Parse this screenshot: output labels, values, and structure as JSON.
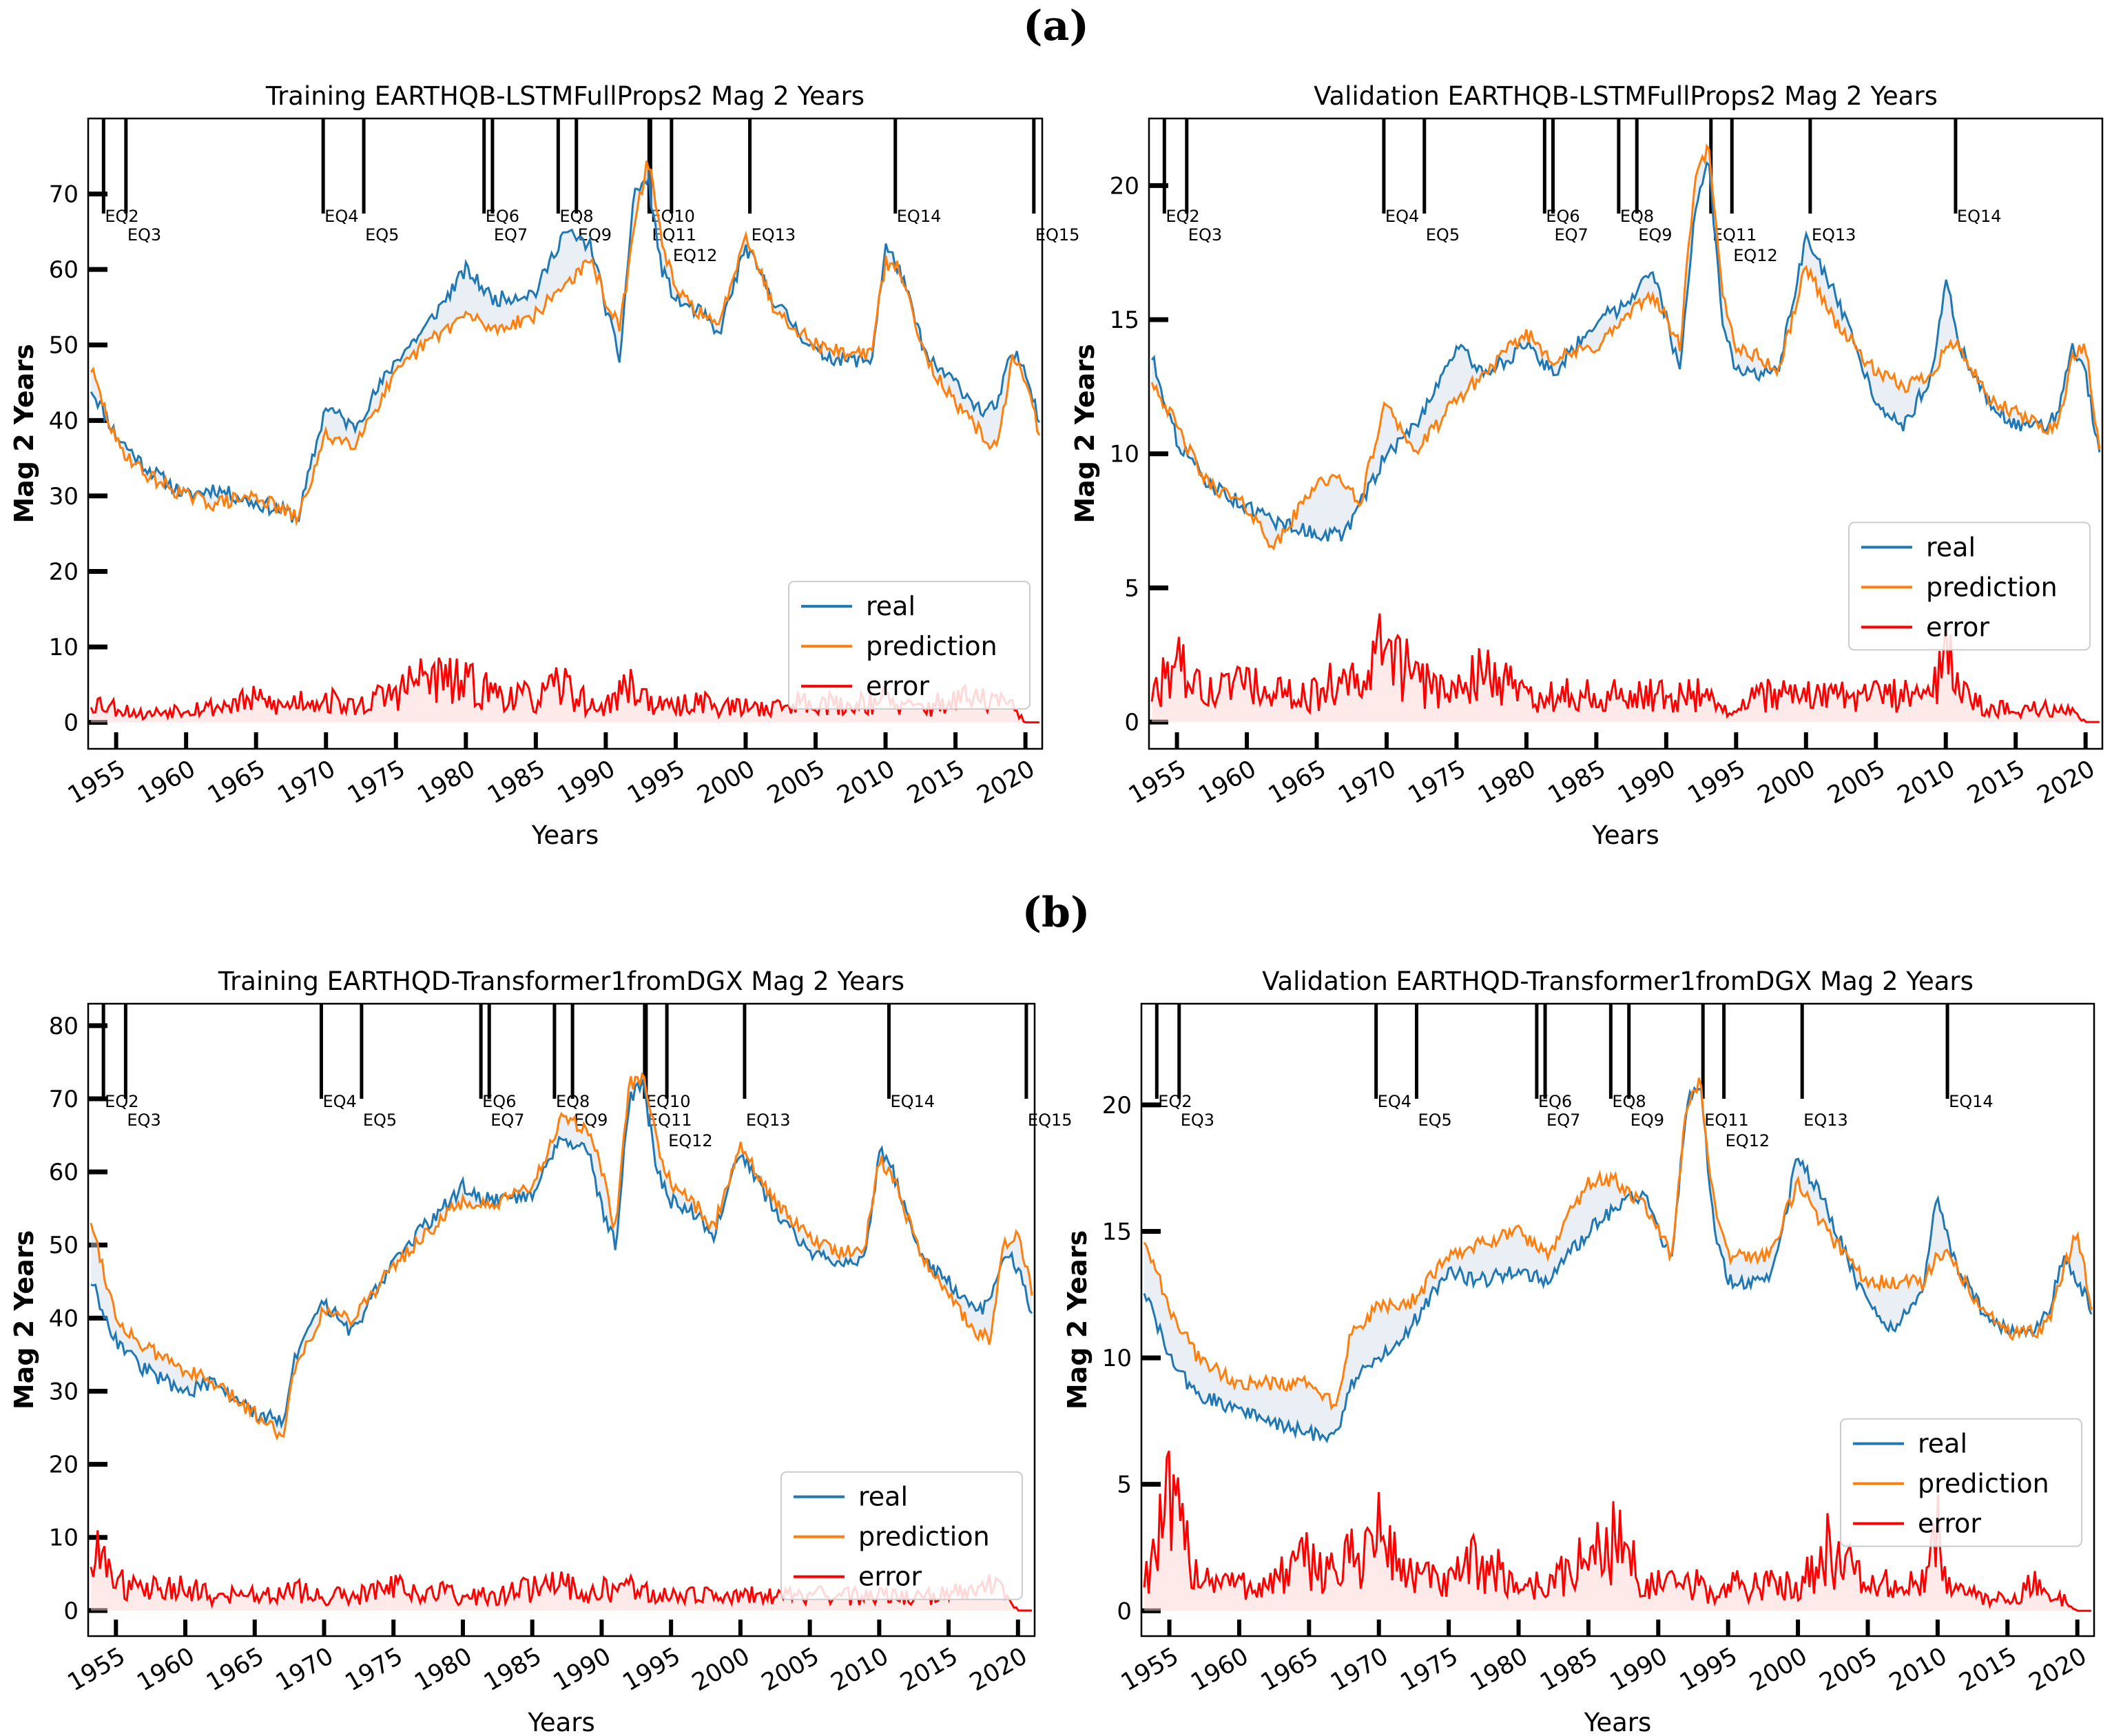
{
  "panel_labels": [
    "(a)",
    "(b)"
  ],
  "colors": {
    "real": "#1f77b4",
    "prediction": "#ff7f0e",
    "error": "#ff0000",
    "marker": "#000000"
  },
  "chart_data": [
    {
      "type": "line",
      "title": "Training  EARTHQB-LSTMFullProps2 Mag 2 Years",
      "xlabel": "Years",
      "ylabel": "Mag 2 Years",
      "xlim": [
        1953.0,
        2021.2
      ],
      "ylim": [
        -3.5,
        80
      ],
      "yticks": [
        0,
        10,
        20,
        30,
        40,
        50,
        60,
        70
      ],
      "xticks": [
        1955,
        1960,
        1965,
        1970,
        1975,
        1980,
        1985,
        1990,
        1995,
        2000,
        2005,
        2010,
        2015,
        2020
      ],
      "grid": false,
      "legend": {
        "location": "lower-right",
        "entries": [
          "real",
          "prediction",
          "error"
        ]
      },
      "events": [
        {
          "label": "EQ2",
          "year": 1954.1,
          "tier": 0
        },
        {
          "label": "EQ3",
          "year": 1955.7,
          "tier": 1
        },
        {
          "label": "EQ4",
          "year": 1969.8,
          "tier": 0
        },
        {
          "label": "EQ5",
          "year": 1972.7,
          "tier": 1
        },
        {
          "label": "EQ6",
          "year": 1981.3,
          "tier": 0
        },
        {
          "label": "EQ7",
          "year": 1981.9,
          "tier": 1
        },
        {
          "label": "EQ8",
          "year": 1986.6,
          "tier": 0
        },
        {
          "label": "EQ9",
          "year": 1987.9,
          "tier": 1
        },
        {
          "label": "EQ10",
          "year": 1993.1,
          "tier": 0
        },
        {
          "label": "EQ11",
          "year": 1993.2,
          "tier": 1
        },
        {
          "label": "EQ12",
          "year": 1994.7,
          "tier": 2
        },
        {
          "label": "EQ13",
          "year": 2000.3,
          "tier": 1
        },
        {
          "label": "EQ14",
          "year": 2010.7,
          "tier": 0
        },
        {
          "label": "EQ15",
          "year": 2020.6,
          "tier": 1
        }
      ],
      "x": [
        1953,
        1955,
        1957,
        1960,
        1962,
        1965,
        1967,
        1968,
        1970,
        1972,
        1975,
        1977,
        1980,
        1982,
        1985,
        1987,
        1989,
        1990,
        1991,
        1992,
        1993,
        1994,
        1995,
        1997,
        1998,
        2000,
        2002,
        2005,
        2007,
        2009,
        2010,
        2011,
        2013,
        2015,
        2017,
        2018,
        2019,
        2020,
        2021
      ],
      "series": [
        {
          "name": "real",
          "values": [
            45,
            38,
            34,
            30,
            31,
            29,
            28,
            27,
            42,
            39,
            48,
            52,
            60,
            56,
            57,
            65,
            63,
            55,
            48,
            70,
            72,
            60,
            56,
            54,
            51,
            63,
            56,
            49,
            48,
            48,
            63,
            60,
            48,
            45,
            41,
            42,
            49,
            47,
            40
          ]
        },
        {
          "name": "prediction",
          "values": [
            48,
            37,
            33,
            30,
            29,
            30,
            28,
            27,
            38,
            37,
            46,
            50,
            54,
            52,
            54,
            58,
            61,
            56,
            52,
            65,
            75,
            64,
            57,
            54,
            52,
            65,
            55,
            50,
            49,
            49,
            61,
            60,
            48,
            42,
            38,
            36,
            48,
            46,
            38
          ]
        },
        {
          "name": "error",
          "values": [
            3,
            2,
            1,
            2,
            2,
            3,
            2,
            3,
            3,
            2,
            4,
            6,
            5,
            4,
            3,
            5,
            2,
            2,
            4,
            5,
            3,
            2,
            2,
            3,
            2,
            2,
            2,
            3,
            2,
            3,
            3,
            2,
            2,
            3,
            3,
            3,
            2,
            0,
            0
          ]
        }
      ]
    },
    {
      "type": "line",
      "title": "Validation  EARTHQB-LSTMFullProps2 Mag 2 Years",
      "xlabel": "Years",
      "ylabel": "Mag 2 Years",
      "xlim": [
        1953.0,
        2021.2
      ],
      "ylim": [
        -1.0,
        22.5
      ],
      "yticks": [
        0,
        5,
        10,
        15,
        20
      ],
      "xticks": [
        1955,
        1960,
        1965,
        1970,
        1975,
        1980,
        1985,
        1990,
        1995,
        2000,
        2005,
        2010,
        2015,
        2020
      ],
      "grid": false,
      "legend": {
        "location": "lower-right",
        "entries": [
          "real",
          "prediction",
          "error"
        ]
      },
      "events": [
        {
          "label": "EQ2",
          "year": 1954.1,
          "tier": 0
        },
        {
          "label": "EQ3",
          "year": 1955.7,
          "tier": 1
        },
        {
          "label": "EQ4",
          "year": 1969.8,
          "tier": 0
        },
        {
          "label": "EQ5",
          "year": 1972.7,
          "tier": 1
        },
        {
          "label": "EQ6",
          "year": 1981.3,
          "tier": 0
        },
        {
          "label": "EQ7",
          "year": 1981.9,
          "tier": 1
        },
        {
          "label": "EQ8",
          "year": 1986.6,
          "tier": 0
        },
        {
          "label": "EQ9",
          "year": 1987.9,
          "tier": 1
        },
        {
          "label": "EQ11",
          "year": 1993.2,
          "tier": 1
        },
        {
          "label": "EQ12",
          "year": 1994.7,
          "tier": 2
        },
        {
          "label": "EQ13",
          "year": 2000.3,
          "tier": 1
        },
        {
          "label": "EQ14",
          "year": 2010.7,
          "tier": 0
        }
      ],
      "x": [
        1953,
        1955,
        1957,
        1960,
        1962,
        1965,
        1967,
        1968,
        1970,
        1972,
        1975,
        1977,
        1980,
        1982,
        1985,
        1987,
        1989,
        1990,
        1991,
        1992,
        1993,
        1994,
        1995,
        1997,
        1998,
        2000,
        2002,
        2005,
        2007,
        2009,
        2010,
        2011,
        2013,
        2015,
        2017,
        2018,
        2019,
        2020,
        2021
      ],
      "series": [
        {
          "name": "real",
          "values": [
            14,
            10.5,
            9,
            8,
            7.5,
            7,
            7,
            8,
            10,
            11,
            14,
            13,
            14,
            13,
            15,
            15.5,
            17,
            15,
            13,
            19,
            21,
            15,
            13,
            13,
            13,
            18,
            16,
            12,
            11,
            13,
            16.5,
            14,
            12,
            11,
            11,
            11.5,
            14,
            13,
            10
          ]
        },
        {
          "name": "prediction",
          "values": [
            13,
            11,
            9,
            8,
            6.5,
            9,
            9,
            8,
            12,
            10,
            12,
            13,
            14.5,
            13.5,
            14,
            15,
            16,
            15,
            14,
            20,
            21.5,
            16,
            14,
            13.5,
            13,
            17,
            15,
            13,
            12.5,
            13,
            14,
            14,
            12,
            11.5,
            11,
            11,
            13.5,
            14,
            10
          ]
        },
        {
          "name": "error",
          "values": [
            1,
            2,
            1,
            1.5,
            1,
            1,
            2,
            1,
            3,
            1.5,
            1,
            2,
            1,
            1,
            1,
            1,
            1,
            1,
            1,
            1,
            1,
            0.5,
            0.5,
            1,
            1,
            1,
            1,
            1,
            1,
            1,
            2.5,
            1,
            0.5,
            0.5,
            0.5,
            0.5,
            0.5,
            0,
            0
          ]
        }
      ]
    },
    {
      "type": "line",
      "title": "Training  EARTHQD-Transformer1fromDGX Mag 2 Years",
      "xlabel": "Years",
      "ylabel": "Mag 2 Years",
      "xlim": [
        1953.0,
        2021.2
      ],
      "ylim": [
        -3.5,
        83
      ],
      "yticks": [
        0,
        10,
        20,
        30,
        40,
        50,
        60,
        70,
        80
      ],
      "xticks": [
        1955,
        1960,
        1965,
        1970,
        1975,
        1980,
        1985,
        1990,
        1995,
        2000,
        2005,
        2010,
        2015,
        2020
      ],
      "grid": false,
      "legend": {
        "location": "lower-right",
        "entries": [
          "real",
          "prediction",
          "error"
        ]
      },
      "events": [
        {
          "label": "EQ2",
          "year": 1954.1,
          "tier": 0
        },
        {
          "label": "EQ3",
          "year": 1955.7,
          "tier": 1
        },
        {
          "label": "EQ4",
          "year": 1969.8,
          "tier": 0
        },
        {
          "label": "EQ5",
          "year": 1972.7,
          "tier": 1
        },
        {
          "label": "EQ6",
          "year": 1981.3,
          "tier": 0
        },
        {
          "label": "EQ7",
          "year": 1981.9,
          "tier": 1
        },
        {
          "label": "EQ8",
          "year": 1986.6,
          "tier": 0
        },
        {
          "label": "EQ9",
          "year": 1987.9,
          "tier": 1
        },
        {
          "label": "EQ10",
          "year": 1993.1,
          "tier": 0
        },
        {
          "label": "EQ11",
          "year": 1993.2,
          "tier": 1
        },
        {
          "label": "EQ12",
          "year": 1994.7,
          "tier": 2
        },
        {
          "label": "EQ13",
          "year": 2000.3,
          "tier": 1
        },
        {
          "label": "EQ14",
          "year": 2010.7,
          "tier": 0
        },
        {
          "label": "EQ15",
          "year": 2020.6,
          "tier": 1
        }
      ],
      "x": [
        1953,
        1955,
        1957,
        1960,
        1962,
        1965,
        1967,
        1968,
        1970,
        1972,
        1975,
        1977,
        1980,
        1982,
        1985,
        1987,
        1989,
        1990,
        1991,
        1992,
        1993,
        1994,
        1995,
        1997,
        1998,
        2000,
        2002,
        2005,
        2007,
        2009,
        2010,
        2011,
        2013,
        2015,
        2017,
        2018,
        2019,
        2020,
        2021
      ],
      "series": [
        {
          "name": "real",
          "values": [
            46,
            37,
            33,
            30,
            31,
            27,
            26,
            35,
            42,
            38,
            48,
            52,
            58,
            56,
            57,
            65,
            63,
            55,
            50,
            70,
            72,
            60,
            56,
            54,
            51,
            63,
            56,
            49,
            48,
            48,
            63,
            60,
            48,
            45,
            41,
            42,
            49,
            47,
            40
          ]
        },
        {
          "name": "prediction",
          "values": [
            55,
            40,
            36,
            33,
            31,
            27,
            24,
            34,
            41,
            40,
            47,
            51,
            56,
            55,
            58,
            67,
            66,
            60,
            52,
            72,
            73,
            64,
            58,
            55,
            52,
            64,
            57,
            51,
            49,
            50,
            62,
            59,
            49,
            43,
            38,
            37,
            50,
            52,
            44
          ]
        },
        {
          "name": "error",
          "values": [
            9,
            4,
            3,
            3,
            2,
            2,
            2,
            3,
            2,
            2,
            3,
            3,
            2,
            2,
            3,
            4,
            2,
            3,
            2,
            3,
            3,
            2,
            2,
            2,
            2,
            2,
            2,
            2,
            2,
            2,
            2,
            2,
            2,
            2,
            3,
            3,
            3,
            0,
            0
          ]
        }
      ]
    },
    {
      "type": "line",
      "title": "Validation  EARTHQD-Transformer1fromDGX Mag 2 Years",
      "xlabel": "Years",
      "ylabel": "Mag 2 Years",
      "xlim": [
        1953.0,
        2021.2
      ],
      "ylim": [
        -1.0,
        24
      ],
      "yticks": [
        0,
        5,
        10,
        15,
        20
      ],
      "xticks": [
        1955,
        1960,
        1965,
        1970,
        1975,
        1980,
        1985,
        1990,
        1995,
        2000,
        2005,
        2010,
        2015,
        2020
      ],
      "grid": false,
      "legend": {
        "location": "lower-right",
        "entries": [
          "real",
          "prediction",
          "error"
        ]
      },
      "events": [
        {
          "label": "EQ2",
          "year": 1954.1,
          "tier": 0
        },
        {
          "label": "EQ3",
          "year": 1955.7,
          "tier": 1
        },
        {
          "label": "EQ4",
          "year": 1969.8,
          "tier": 0
        },
        {
          "label": "EQ5",
          "year": 1972.7,
          "tier": 1
        },
        {
          "label": "EQ6",
          "year": 1981.3,
          "tier": 0
        },
        {
          "label": "EQ7",
          "year": 1981.9,
          "tier": 1
        },
        {
          "label": "EQ8",
          "year": 1986.6,
          "tier": 0
        },
        {
          "label": "EQ9",
          "year": 1987.9,
          "tier": 1
        },
        {
          "label": "EQ11",
          "year": 1993.2,
          "tier": 1
        },
        {
          "label": "EQ12",
          "year": 1994.7,
          "tier": 2
        },
        {
          "label": "EQ13",
          "year": 2000.3,
          "tier": 1
        },
        {
          "label": "EQ14",
          "year": 2010.7,
          "tier": 0
        }
      ],
      "x": [
        1953,
        1955,
        1957,
        1960,
        1962,
        1965,
        1967,
        1968,
        1970,
        1972,
        1975,
        1977,
        1980,
        1982,
        1985,
        1987,
        1989,
        1990,
        1991,
        1992,
        1993,
        1994,
        1995,
        1997,
        1998,
        2000,
        2002,
        2005,
        2007,
        2009,
        2010,
        2011,
        2013,
        2015,
        2017,
        2018,
        2019,
        2020,
        2021
      ],
      "series": [
        {
          "name": "real",
          "values": [
            13,
            10,
            8.5,
            8,
            7.5,
            7,
            7,
            9,
            10,
            11,
            13.5,
            13,
            13.5,
            13,
            15,
            16,
            16.5,
            15,
            14,
            20,
            21,
            15,
            13,
            13,
            13,
            18,
            16,
            12,
            11,
            13,
            16.5,
            14,
            12,
            11,
            11,
            12,
            14,
            13,
            12
          ]
        },
        {
          "name": "prediction",
          "values": [
            15,
            12,
            10,
            9,
            9,
            9,
            8,
            11,
            12,
            12,
            14,
            14.5,
            15,
            14,
            17,
            17,
            16,
            15,
            14,
            20,
            21,
            16,
            14,
            14,
            14,
            17,
            15,
            13,
            13,
            13,
            14,
            14,
            12,
            11,
            11,
            11.5,
            13.5,
            15,
            12
          ]
        },
        {
          "name": "error",
          "values": [
            1,
            4,
            1.5,
            1,
            1,
            2,
            1.5,
            2,
            3,
            1.5,
            1,
            2,
            1,
            1,
            2,
            3,
            1,
            1,
            1,
            1,
            1,
            0.5,
            1,
            1,
            1,
            1,
            2.5,
            1,
            1,
            1,
            3,
            1,
            0.5,
            0.5,
            1,
            0.5,
            0.5,
            0,
            0
          ]
        }
      ]
    }
  ]
}
